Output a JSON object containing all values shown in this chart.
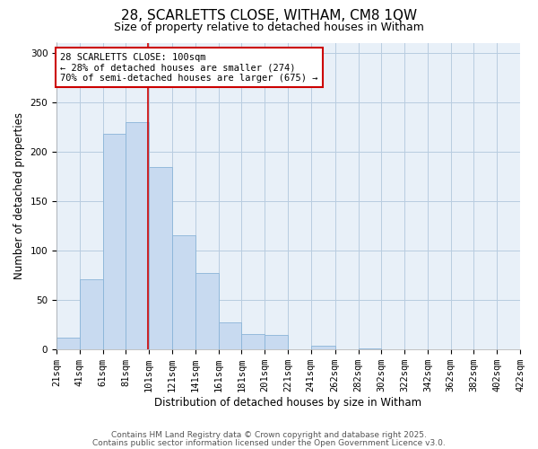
{
  "title": "28, SCARLETTS CLOSE, WITHAM, CM8 1QW",
  "subtitle": "Size of property relative to detached houses in Witham",
  "xlabel": "Distribution of detached houses by size in Witham",
  "ylabel": "Number of detached properties",
  "bar_color": "#c8daf0",
  "bar_edge_color": "#8ab4d8",
  "background_color": "#ffffff",
  "plot_bg_color": "#e8f0f8",
  "grid_color": "#b8cce0",
  "vline_x": 100,
  "vline_color": "#cc0000",
  "annotation_title": "28 SCARLETTS CLOSE: 100sqm",
  "annotation_line1": "← 28% of detached houses are smaller (274)",
  "annotation_line2": "70% of semi-detached houses are larger (675) →",
  "annotation_box_edgecolor": "#cc0000",
  "bin_edges": [
    21,
    41,
    61,
    81,
    101,
    121,
    141,
    161,
    181,
    201,
    221,
    241,
    262,
    282,
    302,
    322,
    342,
    362,
    382,
    402,
    422
  ],
  "bin_counts": [
    12,
    71,
    218,
    230,
    184,
    115,
    77,
    27,
    16,
    15,
    0,
    4,
    0,
    1,
    0,
    0,
    0,
    0,
    0,
    0
  ],
  "ylim": [
    0,
    310
  ],
  "yticks": [
    0,
    50,
    100,
    150,
    200,
    250,
    300
  ],
  "footer_line1": "Contains HM Land Registry data © Crown copyright and database right 2025.",
  "footer_line2": "Contains public sector information licensed under the Open Government Licence v3.0.",
  "title_fontsize": 11,
  "subtitle_fontsize": 9,
  "axis_label_fontsize": 8.5,
  "tick_fontsize": 7.5,
  "annotation_fontsize": 7.5,
  "footer_fontsize": 6.5
}
